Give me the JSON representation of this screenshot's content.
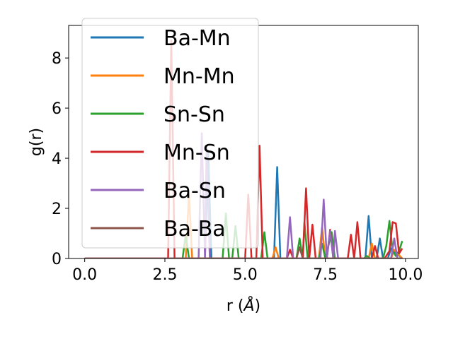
{
  "chart_data": {
    "type": "line",
    "xlabel": "r (",
    "xlabel_symbol": "Å",
    "xlabel_close": ")",
    "ylabel": "g(r)",
    "xlim": [
      -0.5,
      10.4
    ],
    "ylim": [
      0,
      9.3
    ],
    "xticks": [
      0.0,
      2.5,
      5.0,
      7.5,
      10.0
    ],
    "xtick_labels": [
      "0.0",
      "2.5",
      "5.0",
      "7.5",
      "10.0"
    ],
    "yticks": [
      0,
      2,
      4,
      6,
      8
    ],
    "ytick_labels": [
      "0",
      "2",
      "4",
      "6",
      "8"
    ],
    "grid": false,
    "legend_position": "upper-left",
    "series": [
      {
        "name": "Ba-Mn",
        "color": "#1f77b4",
        "points": [
          [
            0,
            0
          ],
          [
            3.75,
            0
          ],
          [
            3.85,
            4.3
          ],
          [
            3.95,
            0
          ],
          [
            5.9,
            0
          ],
          [
            6.0,
            3.65
          ],
          [
            6.1,
            0
          ],
          [
            8.75,
            0
          ],
          [
            8.85,
            1.7
          ],
          [
            8.95,
            0
          ],
          [
            9.1,
            0
          ],
          [
            9.2,
            0.8
          ],
          [
            9.3,
            0
          ],
          [
            9.45,
            0
          ],
          [
            9.55,
            0.4
          ],
          [
            9.9,
            0
          ]
        ]
      },
      {
        "name": "Mn-Mn",
        "color": "#ff7f0e",
        "points": [
          [
            0,
            0
          ],
          [
            3.15,
            0
          ],
          [
            3.25,
            2.6
          ],
          [
            3.35,
            0
          ],
          [
            5.85,
            0
          ],
          [
            5.95,
            0.45
          ],
          [
            6.05,
            0
          ],
          [
            7.3,
            0
          ],
          [
            7.4,
            1.25
          ],
          [
            7.5,
            0
          ],
          [
            8.85,
            0
          ],
          [
            8.95,
            0.6
          ],
          [
            9.05,
            0
          ],
          [
            9.55,
            0
          ],
          [
            9.65,
            0.35
          ],
          [
            9.9,
            0
          ]
        ]
      },
      {
        "name": "Sn-Sn",
        "color": "#2ca02c",
        "points": [
          [
            0,
            0
          ],
          [
            3.05,
            0
          ],
          [
            3.15,
            0.95
          ],
          [
            3.25,
            0
          ],
          [
            4.3,
            0
          ],
          [
            4.4,
            1.8
          ],
          [
            4.5,
            0
          ],
          [
            4.6,
            0
          ],
          [
            4.7,
            1.3
          ],
          [
            4.8,
            0
          ],
          [
            5.5,
            0
          ],
          [
            5.6,
            1.05
          ],
          [
            5.7,
            0
          ],
          [
            6.6,
            0
          ],
          [
            6.7,
            0.8
          ],
          [
            6.8,
            0
          ],
          [
            6.85,
            1.45
          ],
          [
            6.95,
            0
          ],
          [
            7.3,
            0
          ],
          [
            7.4,
            0.6
          ],
          [
            7.5,
            0
          ],
          [
            7.7,
            1.05
          ],
          [
            7.8,
            0
          ],
          [
            8.7,
            0
          ],
          [
            8.8,
            0.1
          ],
          [
            8.9,
            0
          ],
          [
            9.3,
            0
          ],
          [
            9.4,
            0.5
          ],
          [
            9.5,
            1.5
          ],
          [
            9.6,
            0.3
          ],
          [
            9.7,
            0.1
          ],
          [
            9.8,
            0.3
          ],
          [
            9.9,
            0.7
          ]
        ]
      },
      {
        "name": "Mn-Sn",
        "color": "#d62728",
        "points": [
          [
            0,
            0
          ],
          [
            2.6,
            0
          ],
          [
            2.7,
            8.7
          ],
          [
            2.8,
            0
          ],
          [
            5.0,
            0
          ],
          [
            5.1,
            2.55
          ],
          [
            5.2,
            0
          ],
          [
            5.35,
            0
          ],
          [
            5.45,
            4.5
          ],
          [
            5.55,
            0
          ],
          [
            6.3,
            0
          ],
          [
            6.4,
            0.35
          ],
          [
            6.5,
            0
          ],
          [
            6.8,
            0
          ],
          [
            6.9,
            2.8
          ],
          [
            7.0,
            0
          ],
          [
            7.1,
            1.35
          ],
          [
            7.2,
            0
          ],
          [
            7.55,
            0
          ],
          [
            7.65,
            1.15
          ],
          [
            7.75,
            0
          ],
          [
            8.2,
            0
          ],
          [
            8.3,
            0.95
          ],
          [
            8.4,
            0
          ],
          [
            8.5,
            1.45
          ],
          [
            8.6,
            0
          ],
          [
            8.95,
            0
          ],
          [
            9.05,
            0.5
          ],
          [
            9.15,
            0
          ],
          [
            9.35,
            0
          ],
          [
            9.5,
            0.3
          ],
          [
            9.6,
            1.45
          ],
          [
            9.7,
            1.4
          ],
          [
            9.8,
            0.2
          ],
          [
            9.9,
            0.4
          ]
        ]
      },
      {
        "name": "Ba-Sn",
        "color": "#9467bd",
        "points": [
          [
            0,
            0
          ],
          [
            3.55,
            0
          ],
          [
            3.65,
            5.0
          ],
          [
            3.75,
            0
          ],
          [
            3.8,
            4.5
          ],
          [
            3.9,
            0
          ],
          [
            6.3,
            0
          ],
          [
            6.4,
            1.65
          ],
          [
            6.5,
            0
          ],
          [
            7.35,
            0
          ],
          [
            7.45,
            2.35
          ],
          [
            7.55,
            0
          ],
          [
            7.65,
            1.1
          ],
          [
            7.75,
            0
          ],
          [
            7.8,
            1.1
          ],
          [
            7.9,
            0
          ],
          [
            9.55,
            0
          ],
          [
            9.65,
            0.8
          ],
          [
            9.75,
            0
          ],
          [
            9.9,
            0
          ]
        ]
      },
      {
        "name": "Ba-Ba",
        "color": "#8c564b",
        "points": [
          [
            0,
            0
          ],
          [
            6.6,
            0
          ],
          [
            6.7,
            0.45
          ],
          [
            6.8,
            0
          ],
          [
            9.9,
            0
          ]
        ]
      }
    ]
  }
}
